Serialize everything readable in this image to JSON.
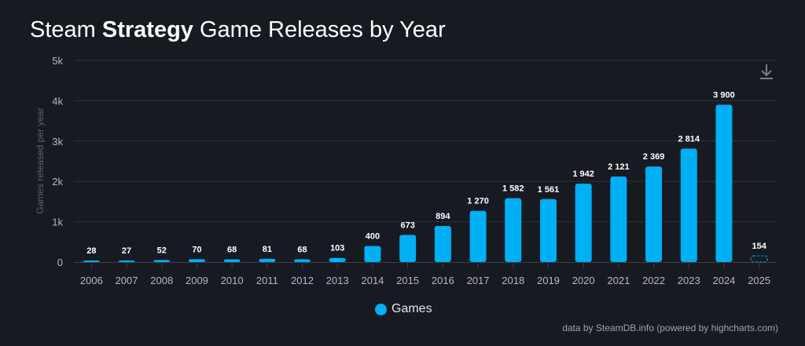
{
  "title": {
    "prefix": "Steam ",
    "bold": "Strategy",
    "suffix": " Game Releases by Year"
  },
  "credit": "data by SteamDB.info (powered by highcharts.com)",
  "colors": {
    "bar": "#00aff4",
    "background": "#171a21",
    "grid": "#2f333b"
  },
  "chart_data": {
    "type": "bar",
    "title": "Steam Strategy Game Releases by Year",
    "ylabel": "Games released per year",
    "xlabel": "",
    "ylim": [
      0,
      5000
    ],
    "yticks": [
      "0",
      "1k",
      "2k",
      "3k",
      "4k",
      "5k"
    ],
    "grid": true,
    "legend_placement": "bottom",
    "categories": [
      "2006",
      "2007",
      "2008",
      "2009",
      "2010",
      "2011",
      "2012",
      "2013",
      "2014",
      "2015",
      "2016",
      "2017",
      "2018",
      "2019",
      "2020",
      "2021",
      "2022",
      "2023",
      "2024",
      "2025"
    ],
    "series": [
      {
        "name": "Games",
        "values": [
          28,
          27,
          52,
          70,
          68,
          81,
          68,
          103,
          400,
          673,
          894,
          1270,
          1582,
          1561,
          1942,
          2121,
          2369,
          2814,
          3900,
          154
        ]
      }
    ],
    "data_labels": [
      "28",
      "27",
      "52",
      "70",
      "68",
      "81",
      "68",
      "103",
      "400",
      "673",
      "894",
      "1 270",
      "1 582",
      "1 561",
      "1 942",
      "2 121",
      "2 369",
      "2 814",
      "3 900",
      "154"
    ],
    "partial_categories": [
      "2025"
    ]
  },
  "icons": {
    "download": "download-icon"
  }
}
